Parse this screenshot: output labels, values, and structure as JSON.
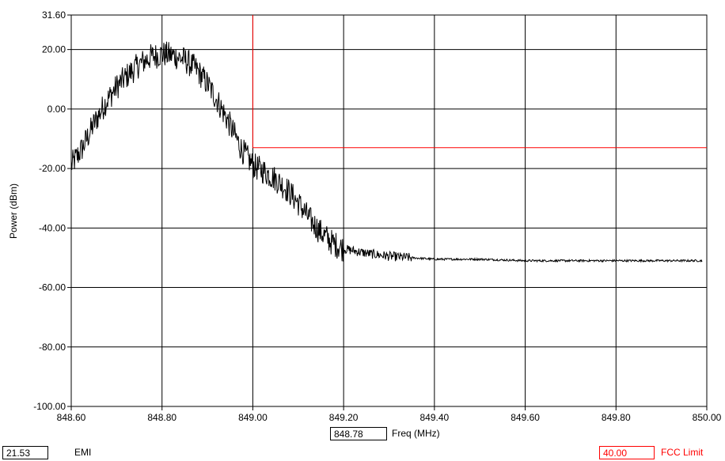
{
  "chart_data": {
    "type": "line",
    "title": "",
    "xlabel": "Freq (MHz)",
    "ylabel": "Power (dBm)",
    "xlim": [
      848.6,
      850.0
    ],
    "ylim": [
      -100.0,
      31.6
    ],
    "x_ticks": [
      "848.60",
      "848.80",
      "849.00",
      "849.20",
      "849.40",
      "849.60",
      "849.80",
      "850.00"
    ],
    "y_ticks": [
      "31.60",
      "20.00",
      "0.00",
      "-20.00",
      "-40.00",
      "-60.00",
      "-80.00",
      "-100.00"
    ],
    "x_tick_values": [
      848.6,
      848.8,
      849.0,
      849.2,
      849.4,
      849.6,
      849.8,
      850.0
    ],
    "y_tick_values": [
      31.6,
      20.0,
      0.0,
      -20.0,
      -40.0,
      -60.0,
      -80.0,
      -100.0
    ],
    "grid": true,
    "series": [
      {
        "color": "#000000",
        "x": [
          848.6,
          848.625,
          848.65,
          848.675,
          848.7,
          848.725,
          848.75,
          848.775,
          848.8,
          848.825,
          848.85,
          848.875,
          848.9,
          848.925,
          848.95,
          848.975,
          849.0,
          849.025,
          849.05,
          849.075,
          849.1,
          849.125,
          849.15,
          849.175,
          849.2,
          849.25,
          849.3,
          849.35,
          849.4,
          849.45,
          849.5,
          849.6,
          849.7,
          849.8,
          849.9,
          849.99
        ],
        "y": [
          -19.0,
          -13.0,
          -5.0,
          2.0,
          7.5,
          11.5,
          15.0,
          17.5,
          18.5,
          18.0,
          16.5,
          13.5,
          8.5,
          2.0,
          -5.5,
          -13.5,
          -19.0,
          -21.0,
          -23.5,
          -27.0,
          -31.5,
          -37.0,
          -41.5,
          -45.0,
          -47.0,
          -48.5,
          -49.5,
          -50.0,
          -50.5,
          -50.5,
          -50.5,
          -51.0,
          -51.0,
          -51.0,
          -51.0,
          -51.0
        ]
      },
      {
        "color": "#ff0000",
        "x": [
          849.0,
          849.0,
          850.0
        ],
        "y": [
          31.6,
          -13.0,
          -13.0
        ]
      }
    ],
    "readouts": {
      "emi_value": "21.53",
      "emi_label": "EMI",
      "freq_value": "848.78",
      "limit_value": "40.00",
      "limit_label": "FCC Limit"
    }
  }
}
